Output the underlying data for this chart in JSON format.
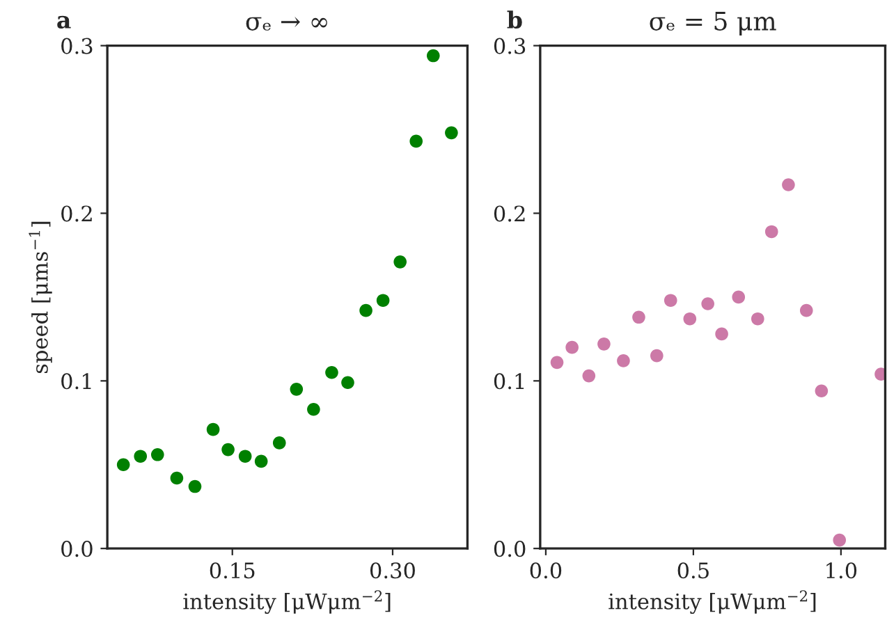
{
  "chart_data": [
    {
      "type": "scatter",
      "title": "σₑ → ∞",
      "xlabel": "intensity [μWμm$^{−2}$]",
      "ylabel": "speed [μms$^{−1}$]",
      "annotations": [
        "a"
      ],
      "x": [
        0.048,
        0.064,
        0.08,
        0.098,
        0.115,
        0.132,
        0.146,
        0.162,
        0.177,
        0.194,
        0.21,
        0.226,
        0.243,
        0.258,
        0.275,
        0.291,
        0.307,
        0.322,
        0.338,
        0.355
      ],
      "series": [
        {
          "color": "#008000",
          "values": [
            0.05,
            0.055,
            0.056,
            0.042,
            0.037,
            0.071,
            0.059,
            0.055,
            0.052,
            0.063,
            0.095,
            0.083,
            0.105,
            0.099,
            0.142,
            0.148,
            0.171,
            0.243,
            0.294,
            0.248
          ]
        }
      ],
      "xlim": [
        0.033,
        0.37
      ],
      "xticks": [
        {
          "value": 0.15,
          "label": "0.15"
        },
        {
          "value": 0.3,
          "label": "0.30"
        }
      ],
      "ylim": [
        0,
        0.3
      ],
      "yticks": [
        {
          "value": 0,
          "label": "0.0"
        },
        0.1,
        0.2,
        0.3
      ],
      "marker": "circle",
      "grid": false,
      "legend": false
    },
    {
      "type": "scatter",
      "title": "σₑ = 5 μm",
      "xlabel": "intensity [μWμm$^{−2}$]",
      "annotations": [
        "b"
      ],
      "x": [
        0.038,
        0.089,
        0.146,
        0.197,
        0.263,
        0.315,
        0.376,
        0.423,
        0.488,
        0.549,
        0.596,
        0.653,
        0.718,
        0.765,
        0.822,
        0.883,
        0.934,
        0.995,
        1.136
      ],
      "series": [
        {
          "color": "#cc79a7",
          "values": [
            0.111,
            0.12,
            0.103,
            0.122,
            0.112,
            0.138,
            0.115,
            0.148,
            0.137,
            0.146,
            0.128,
            0.15,
            0.137,
            0.189,
            0.217,
            0.142,
            0.094,
            0.005,
            0.104
          ]
        }
      ],
      "xlim": [
        -0.019,
        1.15
      ],
      "xticks": [
        {
          "value": 0,
          "label": "0.0"
        },
        0.5,
        {
          "value": 1,
          "label": "1.0"
        }
      ],
      "ylim": [
        0,
        0.3
      ],
      "yticks": [
        {
          "value": 0,
          "label": "0.0"
        },
        0.1,
        0.2,
        0.3
      ],
      "marker": "circle",
      "grid": false,
      "legend": false
    }
  ]
}
